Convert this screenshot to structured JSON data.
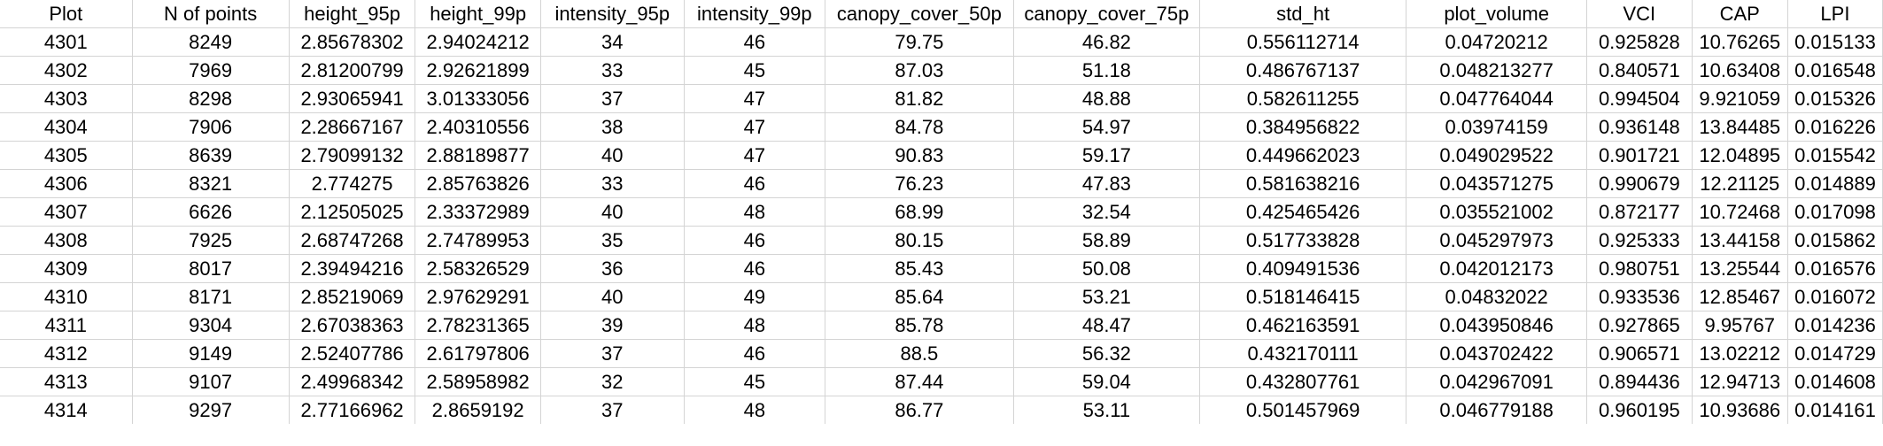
{
  "sheet": {
    "headers": [
      "Plot",
      "N of points",
      "height_95p",
      "height_99p",
      "intensity_95p",
      "intensity_99p",
      "canopy_cover_50p",
      "canopy_cover_75p",
      "std_ht",
      "plot_volume",
      "VCI",
      "CAP",
      "LPI"
    ],
    "rows": [
      [
        "4301",
        "8249",
        "2.85678302",
        "2.94024212",
        "34",
        "46",
        "79.75",
        "46.82",
        "0.556112714",
        "0.04720212",
        "0.925828",
        "10.76265",
        "0.015133"
      ],
      [
        "4302",
        "7969",
        "2.81200799",
        "2.92621899",
        "33",
        "45",
        "87.03",
        "51.18",
        "0.486767137",
        "0.048213277",
        "0.840571",
        "10.63408",
        "0.016548"
      ],
      [
        "4303",
        "8298",
        "2.93065941",
        "3.01333056",
        "37",
        "47",
        "81.82",
        "48.88",
        "0.582611255",
        "0.047764044",
        "0.994504",
        "9.921059",
        "0.015326"
      ],
      [
        "4304",
        "7906",
        "2.28667167",
        "2.40310556",
        "38",
        "47",
        "84.78",
        "54.97",
        "0.384956822",
        "0.03974159",
        "0.936148",
        "13.84485",
        "0.016226"
      ],
      [
        "4305",
        "8639",
        "2.79099132",
        "2.88189877",
        "40",
        "47",
        "90.83",
        "59.17",
        "0.449662023",
        "0.049029522",
        "0.901721",
        "12.04895",
        "0.015542"
      ],
      [
        "4306",
        "8321",
        "2.774275",
        "2.85763826",
        "33",
        "46",
        "76.23",
        "47.83",
        "0.581638216",
        "0.043571275",
        "0.990679",
        "12.21125",
        "0.014889"
      ],
      [
        "4307",
        "6626",
        "2.12505025",
        "2.33372989",
        "40",
        "48",
        "68.99",
        "32.54",
        "0.425465426",
        "0.035521002",
        "0.872177",
        "10.72468",
        "0.017098"
      ],
      [
        "4308",
        "7925",
        "2.68747268",
        "2.74789953",
        "35",
        "46",
        "80.15",
        "58.89",
        "0.517733828",
        "0.045297973",
        "0.925333",
        "13.44158",
        "0.015862"
      ],
      [
        "4309",
        "8017",
        "2.39494216",
        "2.58326529",
        "36",
        "46",
        "85.43",
        "50.08",
        "0.409491536",
        "0.042012173",
        "0.980751",
        "13.25544",
        "0.016576"
      ],
      [
        "4310",
        "8171",
        "2.85219069",
        "2.97629291",
        "40",
        "49",
        "85.64",
        "53.21",
        "0.518146415",
        "0.04832022",
        "0.933536",
        "12.85467",
        "0.016072"
      ],
      [
        "4311",
        "9304",
        "2.67038363",
        "2.78231365",
        "39",
        "48",
        "85.78",
        "48.47",
        "0.462163591",
        "0.043950846",
        "0.927865",
        "9.95767",
        "0.014236"
      ],
      [
        "4312",
        "9149",
        "2.52407786",
        "2.61797806",
        "37",
        "46",
        "88.5",
        "56.32",
        "0.432170111",
        "0.043702422",
        "0.906571",
        "13.02212",
        "0.014729"
      ],
      [
        "4313",
        "9107",
        "2.49968342",
        "2.58958982",
        "32",
        "45",
        "87.44",
        "59.04",
        "0.432807761",
        "0.042967091",
        "0.894436",
        "12.94713",
        "0.014608"
      ],
      [
        "4314",
        "9297",
        "2.77166962",
        "2.8659192",
        "37",
        "48",
        "86.77",
        "53.11",
        "0.501457969",
        "0.046779188",
        "0.960195",
        "10.93686",
        "0.014161"
      ]
    ]
  }
}
